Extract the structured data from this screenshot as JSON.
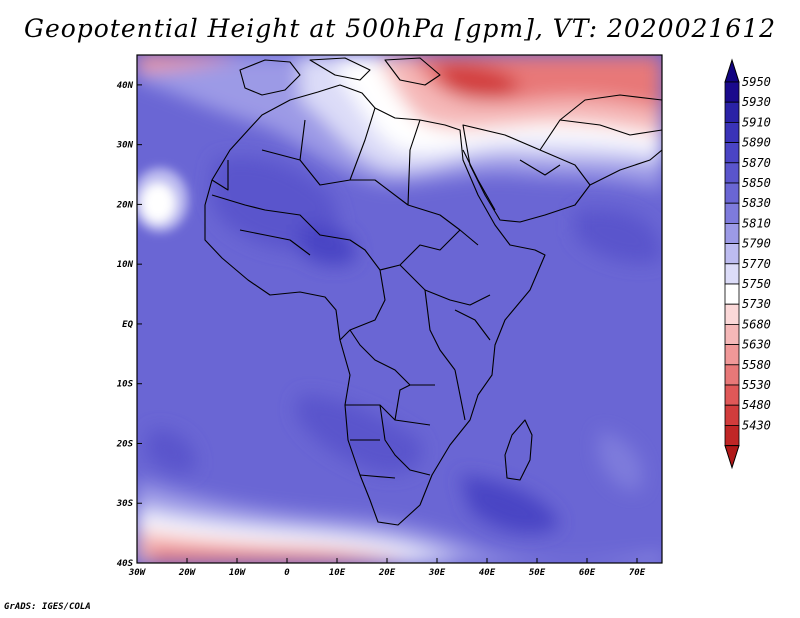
{
  "title": "Geopotential Height at 500hPa [gpm], VT: 2020021612",
  "credit": "GrADS: IGES/COLA",
  "map": {
    "lon_range": [
      -30,
      75
    ],
    "lat_range": [
      -40,
      45
    ],
    "lon_ticks": [
      {
        "lon": -30,
        "label": "30W"
      },
      {
        "lon": -20,
        "label": "20W"
      },
      {
        "lon": -10,
        "label": "10W"
      },
      {
        "lon": 0,
        "label": "0"
      },
      {
        "lon": 10,
        "label": "10E"
      },
      {
        "lon": 20,
        "label": "20E"
      },
      {
        "lon": 30,
        "label": "30E"
      },
      {
        "lon": 40,
        "label": "40E"
      },
      {
        "lon": 50,
        "label": "50E"
      },
      {
        "lon": 60,
        "label": "60E"
      },
      {
        "lon": 70,
        "label": "70E"
      }
    ],
    "lat_ticks": [
      {
        "lat": 40,
        "label": "40N"
      },
      {
        "lat": 30,
        "label": "30N"
      },
      {
        "lat": 20,
        "label": "20N"
      },
      {
        "lat": 10,
        "label": "10N"
      },
      {
        "lat": 0,
        "label": "EQ"
      },
      {
        "lat": -10,
        "label": "10S"
      },
      {
        "lat": -20,
        "label": "20S"
      },
      {
        "lat": -30,
        "label": "30S"
      },
      {
        "lat": -40,
        "label": "40S"
      }
    ]
  },
  "colorbar": {
    "levels": [
      {
        "value": "5950",
        "color": "#1a0a8c"
      },
      {
        "value": "5930",
        "color": "#2a22a6"
      },
      {
        "value": "5910",
        "color": "#3a33b8"
      },
      {
        "value": "5890",
        "color": "#4a44c4"
      },
      {
        "value": "5870",
        "color": "#5a55cc"
      },
      {
        "value": "5850",
        "color": "#6a66d4"
      },
      {
        "value": "5830",
        "color": "#7e7bdc"
      },
      {
        "value": "5810",
        "color": "#9c9ae6"
      },
      {
        "value": "5790",
        "color": "#bdbcf0"
      },
      {
        "value": "5770",
        "color": "#dcdcf8"
      },
      {
        "value": "5750",
        "color": "#ffffff"
      },
      {
        "value": "5730",
        "color": "#fbd8d8"
      },
      {
        "value": "5680",
        "color": "#f5b8b8"
      },
      {
        "value": "5630",
        "color": "#f09898"
      },
      {
        "value": "5580",
        "color": "#e87878"
      },
      {
        "value": "5530",
        "color": "#e05858"
      },
      {
        "value": "5480",
        "color": "#d23c3c"
      },
      {
        "value": "5430",
        "color": "#c02626"
      }
    ],
    "top_arrow_color": "#120480",
    "bottom_arrow_color": "#b01818"
  }
}
